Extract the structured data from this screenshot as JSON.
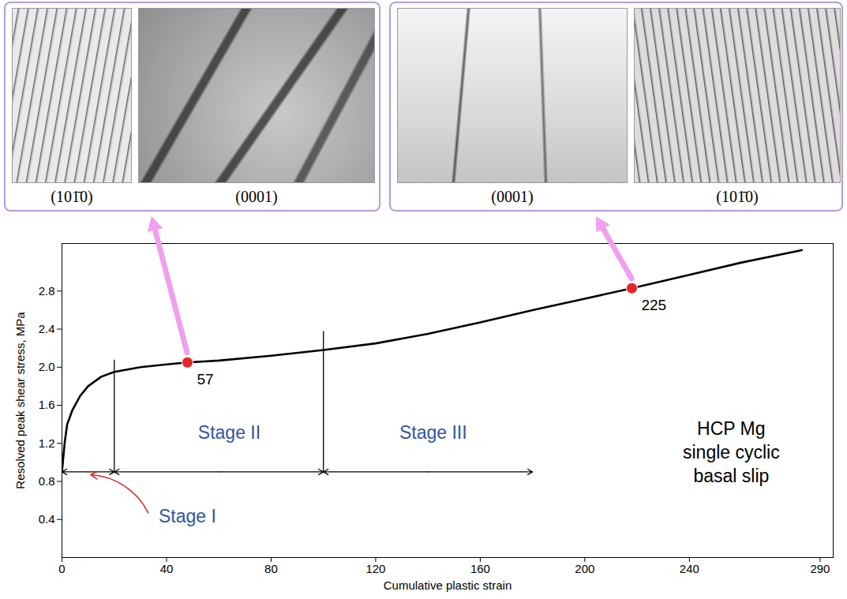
{
  "chart_data": {
    "type": "line",
    "x_label": "Cumulative plastic strain",
    "y_label": "Resolved peak shear stress, MPa",
    "x": [
      0,
      1,
      2,
      4,
      7,
      10,
      15,
      20,
      30,
      40,
      48,
      60,
      80,
      100,
      120,
      140,
      160,
      180,
      200,
      218,
      240,
      260,
      283
    ],
    "series": [
      {
        "color": "#000000",
        "values": [
          0.9,
          1.2,
          1.4,
          1.55,
          1.7,
          1.8,
          1.9,
          1.95,
          2.0,
          2.03,
          2.05,
          2.07,
          2.12,
          2.18,
          2.25,
          2.35,
          2.47,
          2.6,
          2.72,
          2.83,
          2.97,
          3.1,
          3.23
        ]
      }
    ],
    "xlim": [
      0,
      295
    ],
    "xticks": [
      0,
      40,
      80,
      120,
      160,
      200,
      240,
      290
    ],
    "ylim": [
      0,
      3.3
    ],
    "yticks": [
      0.4,
      0.8,
      1.2,
      1.6,
      {
        "value": 2,
        "label": "2.0"
      },
      2.4,
      2.8
    ],
    "highlights": [
      {
        "x": 48,
        "y": 2.05,
        "label": "57",
        "color": "#e8262a",
        "panel": 0
      },
      {
        "x": 218,
        "y": 2.83,
        "label": "225",
        "color": "#e8262a",
        "panel": 1
      }
    ],
    "stage_y": 0.9,
    "stage_color": "#2f55a4",
    "stages": [
      {
        "label": "Stage I",
        "from": 0,
        "to": 20,
        "label_x": 48,
        "label_y": 0.43
      },
      {
        "label": "Stage II",
        "from": 20,
        "to": 100,
        "label_x": 64,
        "label_y": 1.31
      },
      {
        "label": "Stage III",
        "from": 100,
        "to": 180,
        "label_x": 142,
        "label_y": 1.31
      }
    ],
    "boundaries": [
      {
        "x": 20,
        "y1": 0.9,
        "y2": 2.08
      },
      {
        "x": 100,
        "y1": 0.9,
        "y2": 2.38
      }
    ],
    "stage_pointer": {
      "x1": 33,
      "y1": 0.47,
      "x2": 11,
      "y2": 0.87,
      "color": "#d42a2a"
    },
    "note": {
      "lines": [
        "HCP Mg",
        "single cyclic",
        "basal slip"
      ],
      "x": 256,
      "y": 1.12
    },
    "panels": [
      {
        "captions": [
          "(101̄0)",
          "(0001)"
        ],
        "color": "#b39ddb"
      },
      {
        "captions": [
          "(0001)",
          "(101̄0)"
        ],
        "color": "#b39ddb"
      }
    ],
    "pointer_color": "#f0a0ee"
  }
}
